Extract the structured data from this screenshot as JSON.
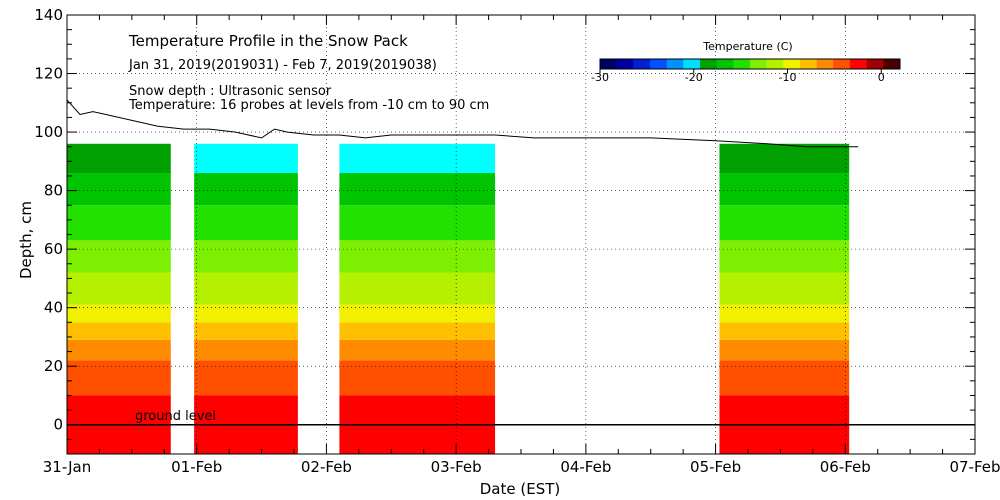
{
  "chart_data": {
    "type": "heatmap",
    "title": "Temperature Profile in the Snow Pack",
    "subtitle": "Jan 31, 2019(2019031) - Feb  7, 2019(2019038)",
    "notes": [
      "Snow depth : Ultrasonic sensor",
      "Temperature: 16 probes at levels from -10 cm to 90 cm"
    ],
    "xlabel": "Date (EST)",
    "ylabel": "Depth, cm",
    "x_ticks": [
      "31-Jan",
      "01-Feb",
      "02-Feb",
      "03-Feb",
      "04-Feb",
      "05-Feb",
      "06-Feb",
      "07-Feb"
    ],
    "x_range_days": [
      0,
      7
    ],
    "y_range": [
      -10,
      140
    ],
    "y_ticks": [
      "0",
      "20",
      "40",
      "60",
      "80",
      "100",
      "120",
      "140"
    ],
    "annotation": "ground level",
    "colorbar": {
      "title": "Temperature (C)",
      "range": [
        -30,
        2
      ],
      "tick_labels": [
        "-30",
        "-20",
        "-10",
        "0"
      ],
      "tick_values": [
        -30,
        -20,
        -10,
        0
      ],
      "colors": [
        "#000066",
        "#0000a0",
        "#0020d0",
        "#0050ff",
        "#0090ff",
        "#00e0ff",
        "#00a000",
        "#00c400",
        "#22e000",
        "#7cf000",
        "#b4f000",
        "#f0f000",
        "#ffc000",
        "#ff8c00",
        "#ff5000",
        "#ff0000",
        "#a00000",
        "#4a0000"
      ]
    },
    "bands": [
      {
        "range": [
          -10,
          10
        ],
        "color": "#ff0000"
      },
      {
        "range": [
          10,
          22
        ],
        "color": "#ff5000"
      },
      {
        "range": [
          22,
          29
        ],
        "color": "#ff8c00"
      },
      {
        "range": [
          29,
          35
        ],
        "color": "#ffc000"
      },
      {
        "range": [
          35,
          41
        ],
        "color": "#f0f000"
      },
      {
        "range": [
          41,
          52
        ],
        "color": "#b4f000"
      },
      {
        "range": [
          52,
          63
        ],
        "color": "#7cf000"
      },
      {
        "range": [
          63,
          75
        ],
        "color": "#22e000"
      },
      {
        "range": [
          75,
          86
        ],
        "color": "#00c400"
      },
      {
        "range": [
          86,
          96
        ],
        "color": "#00a000"
      }
    ],
    "segments": [
      {
        "start_day": 0.0,
        "end_day": 0.8,
        "cap_color": null,
        "cap_from": 96
      },
      {
        "start_day": 0.98,
        "end_day": 1.78,
        "cap_color": "#00ffff",
        "cap_from": 86
      },
      {
        "start_day": 2.1,
        "end_day": 3.3,
        "cap_color": "#00ffff",
        "cap_from": 86
      },
      {
        "start_day": 5.03,
        "end_day": 6.03,
        "cap_color": null,
        "cap_from": 96
      }
    ],
    "snow_depth_series": {
      "name": "Snow depth",
      "days": [
        0.0,
        0.1,
        0.2,
        0.3,
        0.5,
        0.7,
        0.9,
        1.1,
        1.3,
        1.5,
        1.6,
        1.7,
        1.9,
        2.1,
        2.3,
        2.5,
        2.8,
        3.0,
        3.3,
        3.6,
        4.0,
        4.5,
        5.0,
        5.4,
        5.7,
        5.9,
        6.1
      ],
      "depth_cm": [
        111,
        106,
        107,
        106,
        104,
        102,
        101,
        101,
        100,
        98,
        101,
        100,
        99,
        99,
        98,
        99,
        99,
        99,
        99,
        98,
        98,
        98,
        97,
        96,
        95,
        95,
        95
      ]
    }
  }
}
